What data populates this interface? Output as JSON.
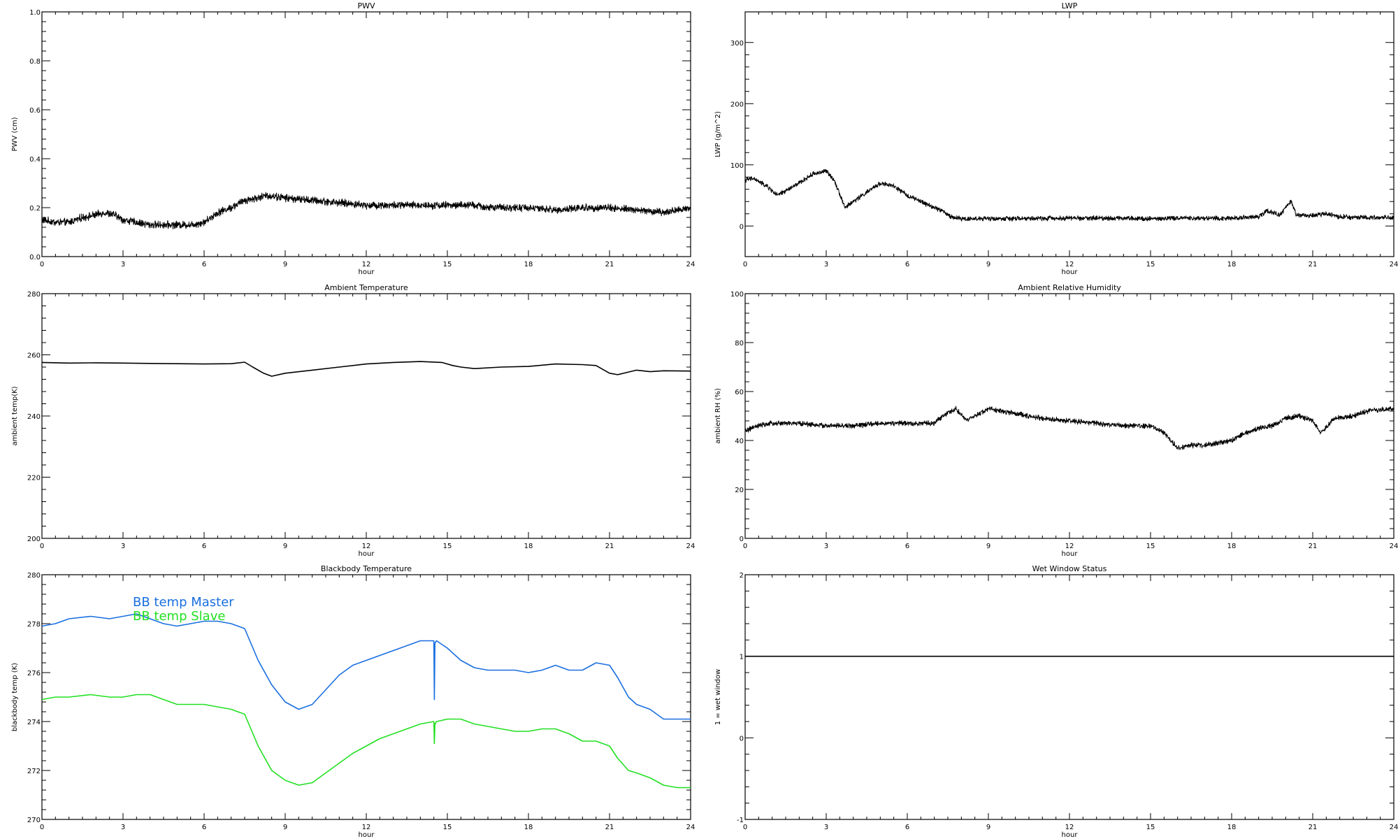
{
  "chart_data": [
    {
      "id": "pwv",
      "type": "line",
      "title": "PWV",
      "xlabel": "hour",
      "ylabel": "PWV (cm)",
      "xlim": [
        0,
        24
      ],
      "ylim": [
        0.0,
        1.0
      ],
      "xticks": [
        0,
        3,
        6,
        9,
        12,
        15,
        18,
        21,
        24
      ],
      "yticks": [
        "0.0",
        "0.2",
        "0.4",
        "0.6",
        "0.8",
        "1.0"
      ],
      "grid": false,
      "series": [
        {
          "color": "#000000",
          "noise": 0.012,
          "x": [
            0,
            0.5,
            1,
            1.5,
            2,
            2.3,
            2.7,
            3,
            3.5,
            4,
            4.5,
            5,
            5.5,
            6,
            6.5,
            7,
            7.5,
            8,
            8.3,
            9,
            10,
            11,
            12,
            13,
            14,
            15,
            16,
            16.5,
            17,
            18,
            19,
            20,
            21,
            22,
            23,
            24
          ],
          "y": [
            0.15,
            0.14,
            0.14,
            0.16,
            0.17,
            0.18,
            0.17,
            0.15,
            0.14,
            0.13,
            0.13,
            0.13,
            0.13,
            0.14,
            0.18,
            0.2,
            0.23,
            0.24,
            0.25,
            0.24,
            0.23,
            0.22,
            0.21,
            0.21,
            0.21,
            0.21,
            0.21,
            0.2,
            0.2,
            0.2,
            0.19,
            0.2,
            0.2,
            0.19,
            0.18,
            0.2
          ]
        }
      ]
    },
    {
      "id": "lwp",
      "type": "line",
      "title": "LWP",
      "xlabel": "hour",
      "ylabel": "LWP (g/m^2)",
      "xlim": [
        0,
        24
      ],
      "ylim": [
        -50,
        350
      ],
      "xticks": [
        0,
        3,
        6,
        9,
        12,
        15,
        18,
        21,
        24
      ],
      "yticks": [
        "0",
        "100",
        "200",
        "300"
      ],
      "grid": false,
      "series": [
        {
          "color": "#000000",
          "noise": 3,
          "x": [
            0,
            0.3,
            0.8,
            1.2,
            2,
            2.5,
            3,
            3.3,
            3.7,
            4,
            4.5,
            5,
            5.5,
            6,
            6.5,
            7,
            7.3,
            7.6,
            8,
            9,
            10,
            12,
            14,
            15,
            16,
            17,
            18,
            19,
            19.3,
            19.8,
            20,
            20.2,
            20.4,
            21,
            21.5,
            22,
            24
          ],
          "y": [
            75,
            78,
            65,
            50,
            70,
            85,
            90,
            75,
            30,
            40,
            55,
            70,
            65,
            50,
            40,
            30,
            25,
            15,
            12,
            12,
            12,
            13,
            13,
            12,
            13,
            13,
            13,
            15,
            25,
            18,
            30,
            40,
            18,
            17,
            20,
            15,
            13
          ]
        }
      ]
    },
    {
      "id": "ambient-temp",
      "type": "line",
      "title": "Ambient Temperature",
      "xlabel": "hour",
      "ylabel": "ambient temp(K)",
      "xlim": [
        0,
        24
      ],
      "ylim": [
        200,
        280
      ],
      "xticks": [
        0,
        3,
        6,
        9,
        12,
        15,
        18,
        21,
        24
      ],
      "yticks": [
        "200",
        "220",
        "240",
        "260",
        "280"
      ],
      "grid": false,
      "series": [
        {
          "color": "#000000",
          "noise": 0,
          "x": [
            0,
            1,
            2,
            3,
            4,
            5,
            6,
            7,
            7.5,
            7.8,
            8.2,
            8.5,
            9,
            10,
            11,
            12,
            13,
            14,
            14.8,
            15.2,
            15.5,
            16,
            17,
            18,
            19,
            20,
            20.5,
            21,
            21.3,
            22,
            22.5,
            23,
            24
          ],
          "y": [
            257.5,
            257.3,
            257.4,
            257.3,
            257.2,
            257.1,
            257.0,
            257.1,
            257.6,
            256.0,
            254.0,
            253.0,
            254.0,
            255.0,
            256.0,
            257.0,
            257.5,
            257.8,
            257.5,
            256.5,
            256.0,
            255.5,
            256.0,
            256.2,
            257.0,
            256.8,
            256.5,
            254.0,
            253.5,
            255.0,
            254.5,
            254.8,
            254.7
          ]
        }
      ]
    },
    {
      "id": "ambient-rh",
      "type": "line",
      "title": "Ambient Relative Humidity",
      "xlabel": "hour",
      "ylabel": "ambient RH (%)",
      "xlim": [
        0,
        24
      ],
      "ylim": [
        0,
        100
      ],
      "xticks": [
        0,
        3,
        6,
        9,
        12,
        15,
        18,
        21,
        24
      ],
      "yticks": [
        "0",
        "20",
        "40",
        "60",
        "80",
        "100"
      ],
      "grid": false,
      "series": [
        {
          "color": "#000000",
          "noise": 0.8,
          "x": [
            0,
            0.5,
            1,
            2,
            3,
            4,
            5,
            6,
            7,
            7.3,
            7.8,
            8.2,
            8.5,
            9,
            9.5,
            10,
            11,
            12,
            13,
            14,
            15,
            15.5,
            16,
            16.5,
            17,
            18,
            18.5,
            19,
            19.5,
            20,
            20.5,
            21,
            21.3,
            21.8,
            22.5,
            23,
            24
          ],
          "y": [
            44,
            46,
            47,
            47,
            46,
            46,
            47,
            47,
            47,
            50,
            53,
            48,
            50,
            53,
            52,
            51,
            49,
            48,
            47,
            46,
            46,
            43,
            37,
            38,
            38,
            40,
            43,
            45,
            46,
            49,
            50,
            48,
            43,
            49,
            50,
            52,
            53
          ]
        }
      ]
    },
    {
      "id": "blackbody-temp",
      "type": "line",
      "title": "Blackbody Temperature",
      "xlabel": "hour",
      "ylabel": "blackbody temp (K)",
      "xlim": [
        0,
        24
      ],
      "ylim": [
        270,
        280
      ],
      "xticks": [
        0,
        3,
        6,
        9,
        12,
        15,
        18,
        21,
        24
      ],
      "yticks": [
        "270",
        "272",
        "274",
        "276",
        "278",
        "280"
      ],
      "grid": false,
      "series": [
        {
          "name": "BB temp Master",
          "color": "#1a6fe0",
          "noise": 0,
          "x": [
            0,
            0.5,
            1,
            1.8,
            2.5,
            3,
            3.5,
            4,
            4.5,
            5,
            5.5,
            6,
            6.5,
            7,
            7.5,
            8,
            8.5,
            9,
            9.5,
            10,
            10.5,
            11,
            11.5,
            12,
            12.5,
            13,
            13.5,
            14,
            14.5,
            14.52,
            14.54,
            14.6,
            15,
            15.5,
            16,
            16.5,
            17,
            17.5,
            18,
            18.5,
            19,
            19.5,
            20,
            20.5,
            21,
            21.3,
            21.7,
            22,
            22.5,
            23,
            23.5,
            24
          ],
          "y": [
            277.9,
            278.0,
            278.2,
            278.3,
            278.2,
            278.3,
            278.4,
            278.2,
            278.0,
            277.9,
            278.0,
            278.1,
            278.1,
            278.0,
            277.8,
            276.5,
            275.5,
            274.8,
            274.5,
            274.7,
            275.3,
            275.9,
            276.3,
            276.5,
            276.7,
            276.9,
            277.1,
            277.3,
            277.3,
            274.9,
            277.2,
            277.3,
            277.0,
            276.5,
            276.2,
            276.1,
            276.1,
            276.1,
            276.0,
            276.1,
            276.3,
            276.1,
            276.1,
            276.4,
            276.3,
            275.8,
            275.0,
            274.7,
            274.5,
            274.1,
            274.1,
            274.1
          ]
        },
        {
          "name": "BB temp Slave",
          "color": "#22e022",
          "noise": 0,
          "x": [
            0,
            0.5,
            1,
            1.8,
            2.5,
            3,
            3.5,
            4,
            4.5,
            5,
            5.5,
            6,
            6.5,
            7,
            7.5,
            8,
            8.5,
            9,
            9.5,
            10,
            10.5,
            11,
            11.5,
            12,
            12.5,
            13,
            13.5,
            14,
            14.5,
            14.52,
            14.54,
            14.6,
            15,
            15.5,
            16,
            16.5,
            17,
            17.5,
            18,
            18.5,
            19,
            19.5,
            20,
            20.5,
            21,
            21.3,
            21.7,
            22,
            22.5,
            23,
            23.5,
            24
          ],
          "y": [
            274.9,
            275.0,
            275.0,
            275.1,
            275.0,
            275.0,
            275.1,
            275.1,
            274.9,
            274.7,
            274.7,
            274.7,
            274.6,
            274.5,
            274.3,
            273.0,
            272.0,
            271.6,
            271.4,
            271.5,
            271.9,
            272.3,
            272.7,
            273.0,
            273.3,
            273.5,
            273.7,
            273.9,
            274.0,
            273.1,
            273.9,
            274.0,
            274.1,
            274.1,
            273.9,
            273.8,
            273.7,
            273.6,
            273.6,
            273.7,
            273.7,
            273.5,
            273.2,
            273.2,
            273.0,
            272.5,
            272.0,
            271.9,
            271.7,
            271.4,
            271.3,
            271.3
          ]
        }
      ],
      "legend": [
        "BB temp Master",
        "BB temp Slave"
      ]
    },
    {
      "id": "wet-window",
      "type": "line",
      "title": "Wet Window Status",
      "xlabel": "hour",
      "ylabel": "1 = wet window",
      "xlim": [
        0,
        24
      ],
      "ylim": [
        -1,
        2
      ],
      "xticks": [
        0,
        3,
        6,
        9,
        12,
        15,
        18,
        21,
        24
      ],
      "yticks": [
        "-1",
        "0",
        "1",
        "2"
      ],
      "grid": false,
      "series": [
        {
          "color": "#000000",
          "noise": 0,
          "x": [
            0,
            24
          ],
          "y": [
            1,
            1
          ]
        }
      ]
    }
  ]
}
